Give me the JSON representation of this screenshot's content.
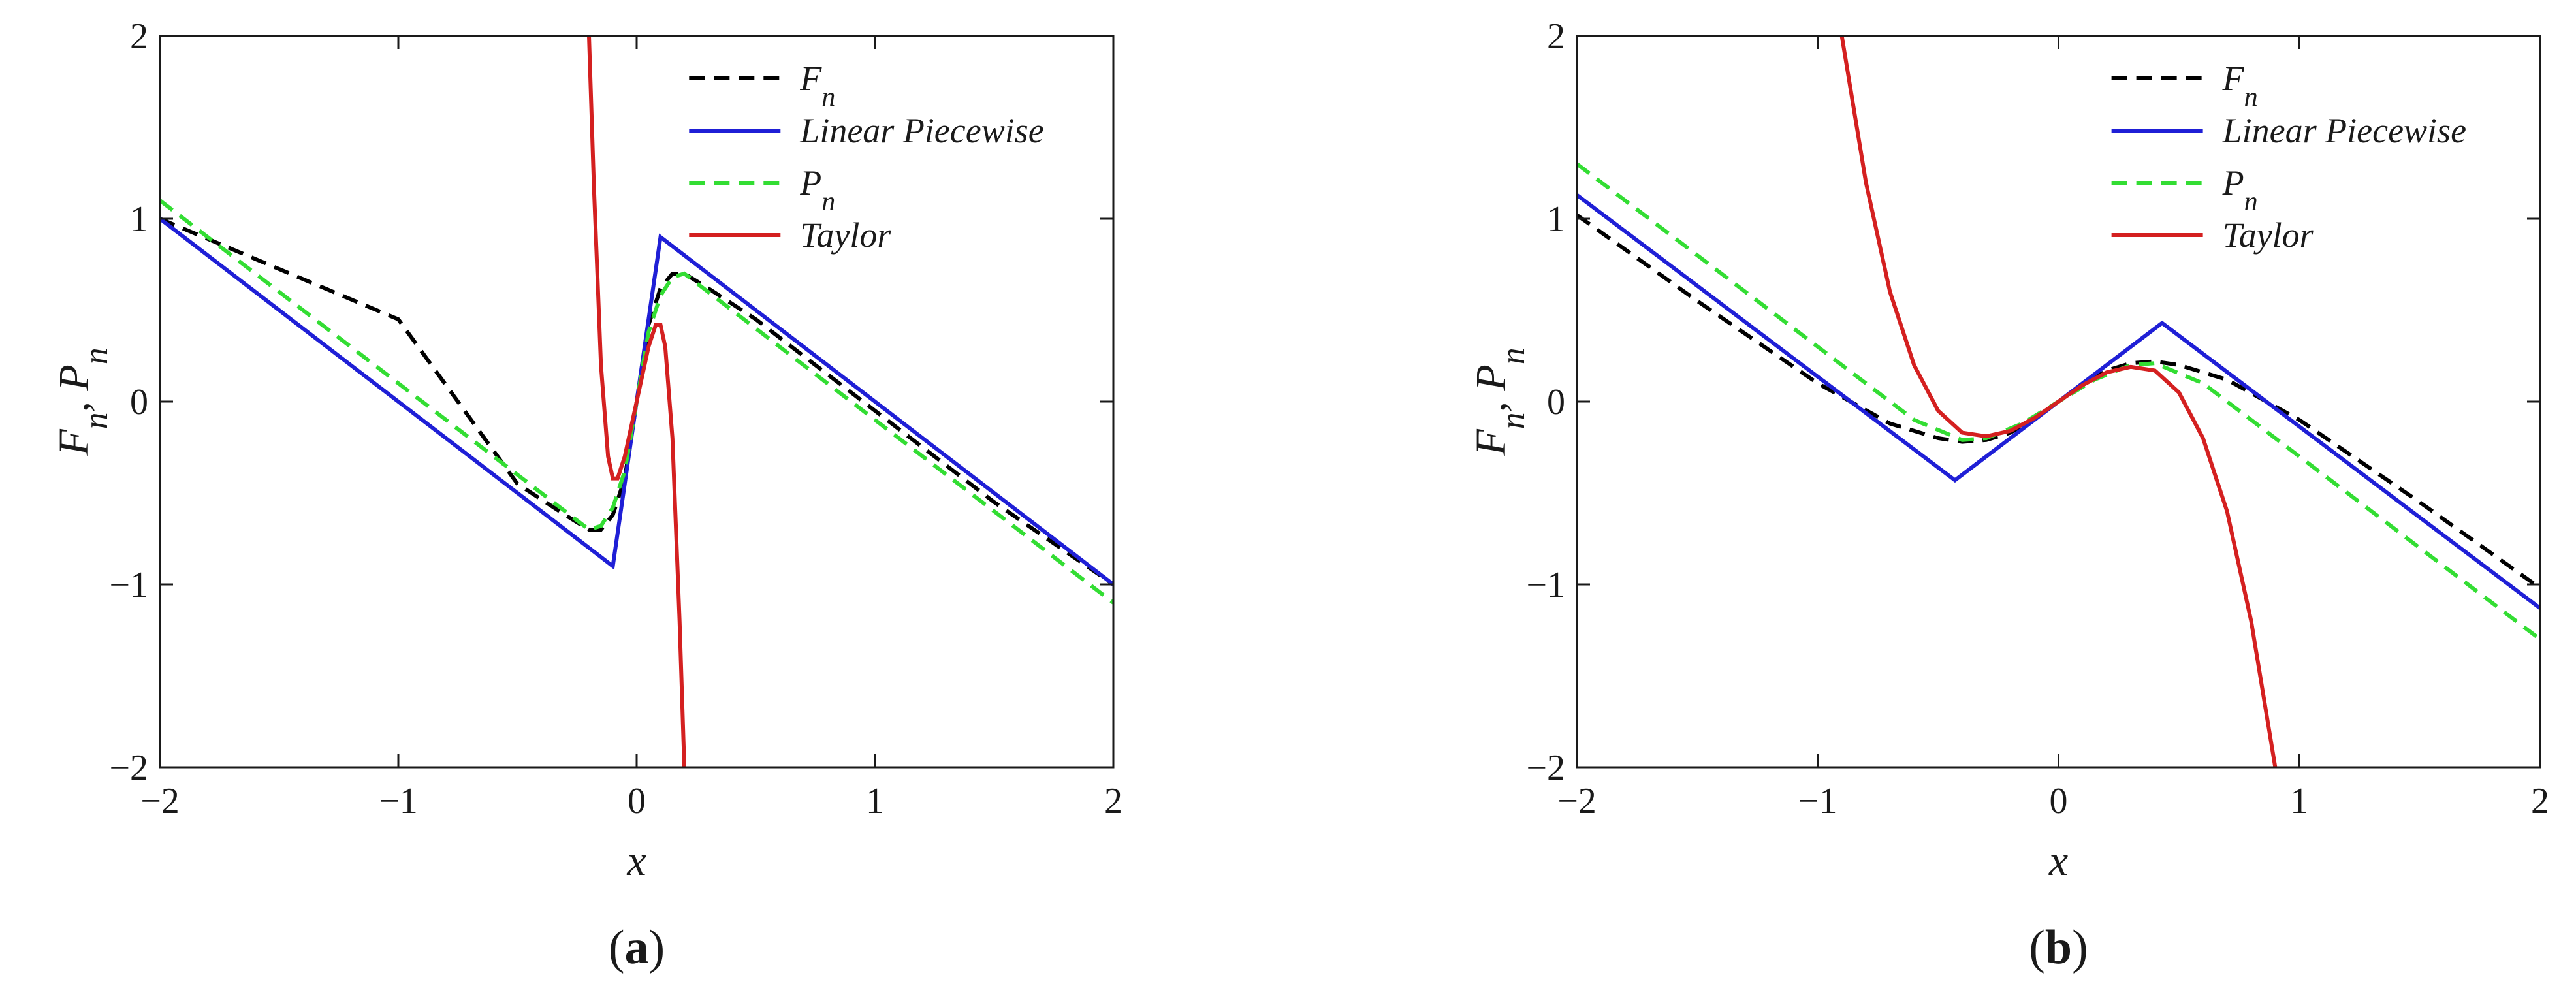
{
  "chart_data": [
    {
      "type": "line",
      "panel_label": "(a)",
      "xlabel": "x",
      "ylabel": "F_n, P_n",
      "xlim": [
        -2,
        2
      ],
      "ylim": [
        -2,
        2
      ],
      "xticks": [
        -2,
        -1,
        0,
        1,
        2
      ],
      "yticks": [
        -2,
        -1,
        0,
        1,
        2
      ],
      "grid": false,
      "legend_position": "top-right",
      "series": [
        {
          "name": "F_n",
          "color": "#000000",
          "style": "dashed",
          "x": [
            -2,
            -1,
            -0.5,
            -0.3,
            -0.2,
            -0.15,
            -0.1,
            -0.05,
            0,
            0.05,
            0.1,
            0.15,
            0.2,
            0.3,
            0.5,
            1,
            1.5,
            2
          ],
          "y": [
            1,
            0.45,
            -0.45,
            -0.62,
            -0.7,
            -0.7,
            -0.62,
            -0.42,
            0,
            0.42,
            0.62,
            0.7,
            0.7,
            0.62,
            0.45,
            -0.05,
            -0.55,
            -1.0
          ]
        },
        {
          "name": "Linear Piecewise",
          "color": "#1f1fd6",
          "style": "solid",
          "x": [
            -2,
            -0.1,
            0.1,
            2
          ],
          "y": [
            1.0,
            -0.9,
            0.9,
            -1.0
          ]
        },
        {
          "name": "P_n",
          "color": "#33dd33",
          "style": "dashed",
          "x": [
            -2,
            -0.3,
            -0.2,
            -0.15,
            -0.1,
            -0.05,
            0,
            0.05,
            0.1,
            0.15,
            0.2,
            0.3,
            2
          ],
          "y": [
            1.1,
            -0.6,
            -0.7,
            -0.68,
            -0.58,
            -0.38,
            0,
            0.38,
            0.58,
            0.68,
            0.7,
            0.6,
            -1.1
          ]
        },
        {
          "name": "Taylor",
          "color": "#d42020",
          "style": "solid",
          "x": [
            -0.2,
            -0.18,
            -0.15,
            -0.12,
            -0.1,
            -0.08,
            -0.05,
            0,
            0.05,
            0.08,
            0.1,
            0.12,
            0.15,
            0.18,
            0.2
          ],
          "y": [
            2.0,
            1.2,
            0.2,
            -0.3,
            -0.42,
            -0.42,
            -0.3,
            0,
            0.3,
            0.42,
            0.42,
            0.3,
            -0.2,
            -1.2,
            -2.0
          ]
        }
      ]
    },
    {
      "type": "line",
      "panel_label": "(b)",
      "xlabel": "x",
      "ylabel": "F_n, P_n",
      "xlim": [
        -2,
        2
      ],
      "ylim": [
        -2,
        2
      ],
      "xticks": [
        -2,
        -1,
        0,
        1,
        2
      ],
      "yticks": [
        -2,
        -1,
        0,
        1,
        2
      ],
      "grid": false,
      "legend_position": "top-right",
      "series": [
        {
          "name": "F_n",
          "color": "#000000",
          "style": "dashed",
          "x": [
            -2,
            -1.5,
            -1,
            -0.7,
            -0.5,
            -0.4,
            -0.3,
            -0.2,
            -0.1,
            0,
            0.1,
            0.2,
            0.3,
            0.4,
            0.5,
            0.7,
            1,
            1.5,
            2
          ],
          "y": [
            1.02,
            0.55,
            0.1,
            -0.12,
            -0.2,
            -0.22,
            -0.21,
            -0.17,
            -0.09,
            0,
            0.09,
            0.17,
            0.21,
            0.22,
            0.2,
            0.12,
            -0.1,
            -0.55,
            -1.02
          ]
        },
        {
          "name": "Linear Piecewise",
          "color": "#1f1fd6",
          "style": "solid",
          "x": [
            -2,
            -0.43,
            0.43,
            2
          ],
          "y": [
            1.13,
            -0.43,
            0.43,
            -1.13
          ]
        },
        {
          "name": "P_n",
          "color": "#33dd33",
          "style": "dashed",
          "x": [
            -2,
            -0.6,
            -0.4,
            -0.3,
            -0.15,
            0,
            0.15,
            0.3,
            0.4,
            0.6,
            2
          ],
          "y": [
            1.3,
            -0.1,
            -0.21,
            -0.2,
            -0.12,
            0,
            0.12,
            0.2,
            0.21,
            0.1,
            -1.3
          ]
        },
        {
          "name": "Taylor",
          "color": "#d42020",
          "style": "solid",
          "x": [
            -0.9,
            -0.8,
            -0.7,
            -0.6,
            -0.5,
            -0.4,
            -0.3,
            -0.2,
            -0.1,
            0,
            0.1,
            0.2,
            0.3,
            0.4,
            0.5,
            0.6,
            0.7,
            0.8,
            0.9
          ],
          "y": [
            2.0,
            1.2,
            0.6,
            0.2,
            -0.05,
            -0.17,
            -0.19,
            -0.16,
            -0.09,
            0,
            0.09,
            0.16,
            0.19,
            0.17,
            0.05,
            -0.2,
            -0.6,
            -1.2,
            -2.0
          ]
        }
      ]
    }
  ]
}
